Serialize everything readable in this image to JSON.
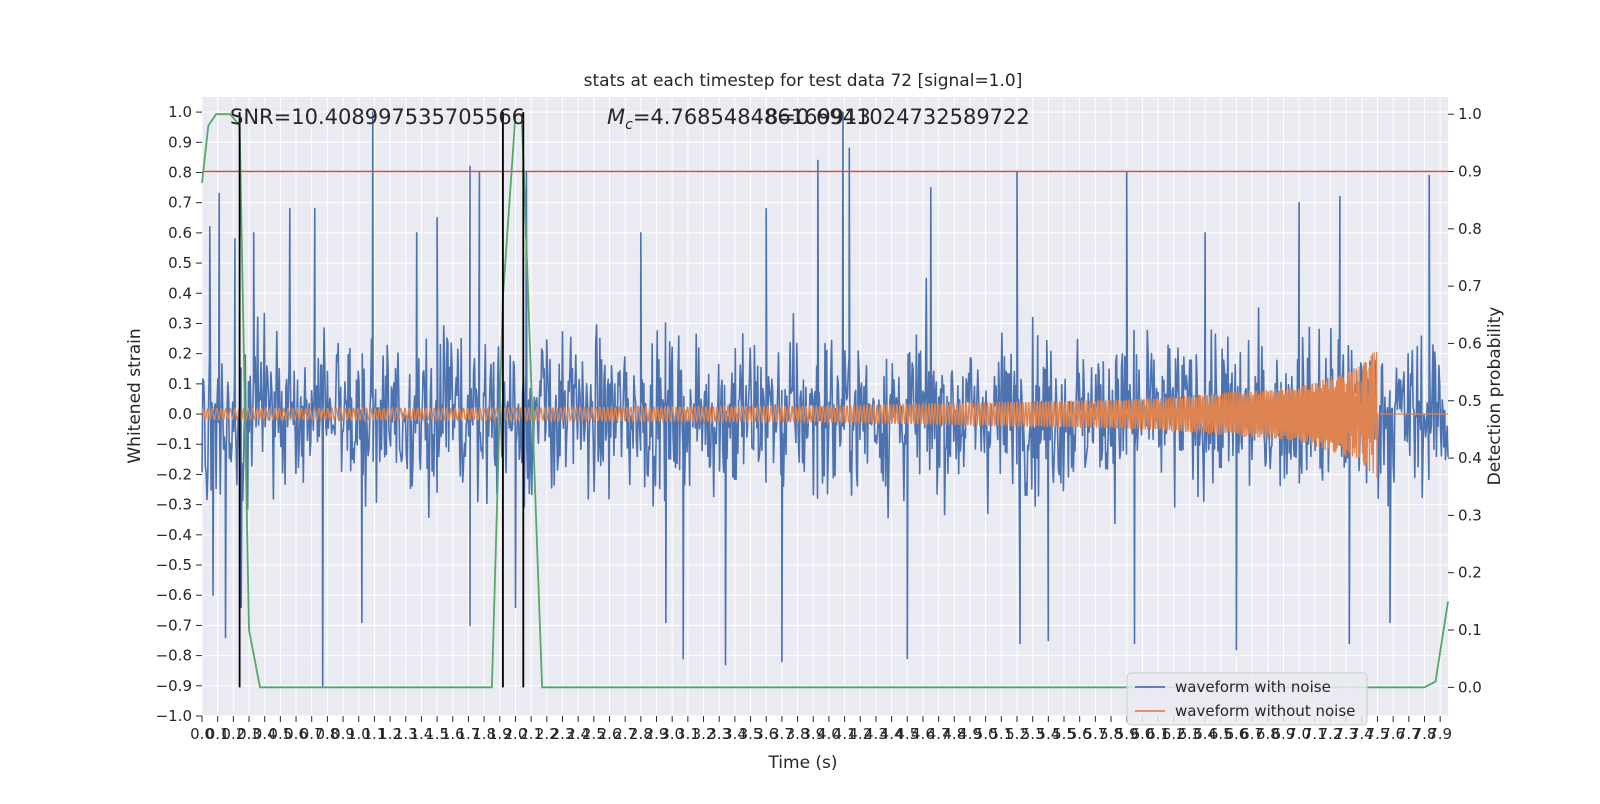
{
  "chart_data": {
    "type": "line",
    "title": "stats at each timestep for test data 72 [signal=1.0]",
    "xlabel": "Time (s)",
    "ylabel": "Whitened strain",
    "y2label": "Detection probability",
    "xlim": [
      0.0,
      7.95
    ],
    "ylim": [
      -1.0,
      1.05
    ],
    "y2lim": [
      -0.05,
      1.03
    ],
    "x_ticks": [
      0.0,
      0.1,
      0.2,
      0.3,
      0.4,
      0.5,
      0.6,
      0.7,
      0.8,
      0.9,
      1.0,
      1.1,
      1.2,
      1.3,
      1.4,
      1.5,
      1.6,
      1.7,
      1.8,
      1.9,
      2.0,
      2.1,
      2.2,
      2.3,
      2.4,
      2.5,
      2.6,
      2.7,
      2.8,
      2.9,
      3.0,
      3.1,
      3.2,
      3.3,
      3.4,
      3.5,
      3.6,
      3.7,
      3.8,
      3.9,
      4.0,
      4.1,
      4.2,
      4.3,
      4.4,
      4.5,
      4.6,
      4.7,
      4.8,
      4.9,
      5.0,
      5.1,
      5.2,
      5.3,
      5.4,
      5.5,
      5.6,
      5.7,
      5.8,
      5.9,
      6.0,
      6.1,
      6.2,
      6.3,
      6.4,
      6.5,
      6.6,
      6.7,
      6.8,
      6.9,
      7.0,
      7.1,
      7.2,
      7.3,
      7.4,
      7.5,
      7.6,
      7.7,
      7.8,
      7.9
    ],
    "y_ticks": [
      -1.0,
      -0.9,
      -0.8,
      -0.7,
      -0.6,
      -0.5,
      -0.4,
      -0.3,
      -0.2,
      -0.1,
      0.0,
      0.1,
      0.2,
      0.3,
      0.4,
      0.5,
      0.6,
      0.7,
      0.8,
      0.9,
      1.0
    ],
    "y2_ticks": [
      0.0,
      0.1,
      0.2,
      0.3,
      0.4,
      0.5,
      0.6,
      0.7,
      0.8,
      0.9,
      1.0
    ],
    "grid": true,
    "legend_position": "lower-right",
    "annotations": {
      "snr": "SNR=10.408997535705566",
      "mc_symbol": "M",
      "mc_sub": "c",
      "mc_value": "=4.768548486169913",
      "mc_overlap": "8=0.6941024732589722"
    },
    "series": [
      {
        "name": "waveform with noise",
        "color": "#4c72b0",
        "axis": "left",
        "description": "whitened noisy strain, roughly uniform amplitude band",
        "band_envelope": {
          "x": [
            0.0,
            7.95
          ],
          "upper": 0.45,
          "lower": -0.45
        },
        "peaks": [
          [
            0.05,
            0.62
          ],
          [
            0.11,
            0.73
          ],
          [
            0.21,
            0.58
          ],
          [
            0.33,
            0.6
          ],
          [
            0.56,
            0.68
          ],
          [
            0.72,
            0.68
          ],
          [
            1.09,
            1.0
          ],
          [
            1.37,
            0.6
          ],
          [
            1.5,
            0.65
          ],
          [
            1.71,
            0.82
          ],
          [
            1.77,
            0.8
          ],
          [
            2.07,
            0.8
          ],
          [
            2.8,
            0.6
          ],
          [
            3.6,
            0.68
          ],
          [
            3.93,
            0.84
          ],
          [
            4.09,
            1.0
          ],
          [
            4.13,
            0.88
          ],
          [
            4.65,
            0.75
          ],
          [
            5.2,
            0.8
          ],
          [
            5.9,
            0.8
          ],
          [
            6.4,
            0.6
          ],
          [
            7.0,
            0.7
          ],
          [
            7.26,
            0.72
          ],
          [
            7.83,
            0.79
          ]
        ],
        "troughs": [
          [
            0.07,
            -0.6
          ],
          [
            0.15,
            -0.74
          ],
          [
            0.25,
            -0.64
          ],
          [
            0.77,
            -0.9
          ],
          [
            1.02,
            -0.69
          ],
          [
            1.71,
            -0.7
          ],
          [
            2.0,
            -0.64
          ],
          [
            2.96,
            -0.69
          ],
          [
            3.07,
            -0.81
          ],
          [
            3.34,
            -0.83
          ],
          [
            3.7,
            -0.82
          ],
          [
            4.5,
            -0.81
          ],
          [
            5.22,
            -0.76
          ],
          [
            5.4,
            -0.75
          ],
          [
            5.95,
            -0.76
          ],
          [
            6.6,
            -0.78
          ],
          [
            7.32,
            -0.76
          ],
          [
            7.58,
            -0.69
          ]
        ]
      },
      {
        "name": "waveform without noise",
        "color": "#dd8452",
        "axis": "left",
        "description": "inspiral chirp, amplitude and frequency grow until merger then zero",
        "amplitude_envelope": {
          "t": [
            0.0,
            2.0,
            4.0,
            6.0,
            7.0,
            7.4,
            7.5,
            7.55,
            7.95
          ],
          "a": [
            0.018,
            0.02,
            0.028,
            0.05,
            0.09,
            0.16,
            0.22,
            0.0,
            0.0
          ]
        },
        "merger_time": 7.5
      },
      {
        "name": "",
        "color": "#55a868",
        "axis": "right",
        "x": [
          0.0,
          0.04,
          0.09,
          0.14,
          0.18,
          0.24,
          0.3,
          0.37,
          1.8,
          1.85,
          1.92,
          2.0,
          2.04,
          2.17,
          7.75,
          7.8,
          7.87,
          7.95
        ],
        "y": [
          0.88,
          0.98,
          1.0,
          1.0,
          1.0,
          0.98,
          0.1,
          0.0,
          0.0,
          0.0,
          0.68,
          1.0,
          1.0,
          0.0,
          0.0,
          0.0,
          0.01,
          0.15
        ]
      }
    ],
    "threshold_line": {
      "value": 0.9,
      "axis": "right",
      "color": "#c44e52"
    },
    "vertical_markers": [
      0.24,
      1.92,
      2.05
    ]
  }
}
